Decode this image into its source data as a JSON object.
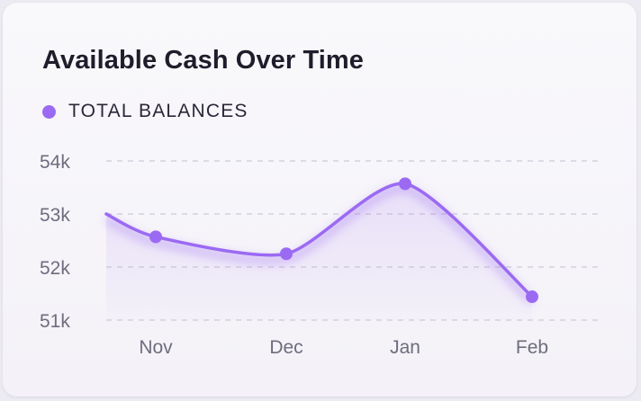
{
  "chart_data": {
    "type": "line",
    "title": "Available Cash Over Time",
    "x_categories": [
      "Nov",
      "Dec",
      "Jan",
      "Feb"
    ],
    "y_tick_labels": [
      "54k",
      "53k",
      "52k",
      "51k"
    ],
    "y_ticks": [
      54000,
      53000,
      52000,
      51000
    ],
    "ylim": [
      51000,
      54000
    ],
    "grid": "horizontal dashed",
    "legend_position": "top-left",
    "series": [
      {
        "name": "TOTAL BALANCES",
        "color": "#9b6af2",
        "line_start_value": 53000,
        "values": [
          52570,
          52250,
          53570,
          51440
        ]
      }
    ]
  },
  "colors": {
    "series": "#9b6af2",
    "grid": "#d4d1dc",
    "tick_text": "#6f6c7e",
    "title": "#1f1d2b"
  }
}
